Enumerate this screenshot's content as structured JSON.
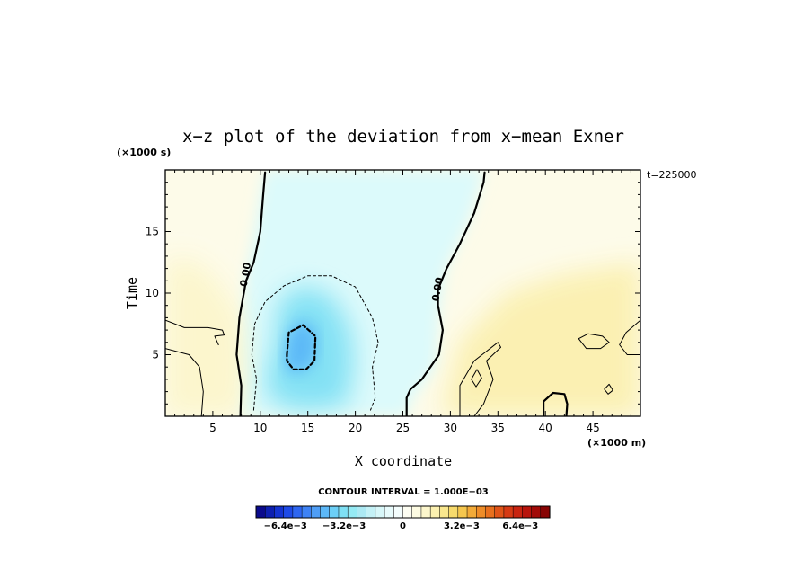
{
  "chart_data": {
    "type": "heatmap",
    "title": "x−z plot of the deviation from x−mean Exner",
    "xlabel": "X coordinate",
    "ylabel": "Time",
    "x_unit": "(×1000 m)",
    "y_unit": "(×1000 s)",
    "time_label": "t=225000",
    "xlim": [
      0,
      50
    ],
    "ylim": [
      0,
      20
    ],
    "x_ticks": [
      5,
      10,
      15,
      20,
      25,
      30,
      35,
      40,
      45
    ],
    "x_tick_labels": [
      "5",
      "10",
      "15",
      "20",
      "25",
      "30",
      "35",
      "40",
      "45"
    ],
    "y_ticks": [
      5,
      10,
      15
    ],
    "y_tick_labels": [
      "5",
      "10",
      "15"
    ],
    "contour_interval_text": "CONTOUR INTERVAL = 1.000E−03",
    "contour_labels": [
      {
        "text": "0.00",
        "x": 8.5,
        "y": 11.5
      },
      {
        "text": "0.00",
        "x": 28.7,
        "y": 10.3
      }
    ],
    "colorbar": {
      "min": -0.008,
      "max": 0.008,
      "tick_labels": [
        "−6.4e−3",
        "−3.2e−3",
        "0",
        "3.2e−3",
        "6.4e−3"
      ],
      "tick_values": [
        -0.0064,
        -0.0032,
        0,
        0.0032,
        0.0064
      ],
      "colors": [
        "#0a0a8c",
        "#0d1fb0",
        "#1433d0",
        "#1e4ae6",
        "#2e66f0",
        "#3e82f4",
        "#4f9ef6",
        "#5cb8f8",
        "#6ccff6",
        "#7fe0f4",
        "#95eaf4",
        "#ace9f3",
        "#c4f1f6",
        "#d8f7f9",
        "#e8fbfc",
        "#f4fdfd",
        "#fdfdf2",
        "#fdfbe2",
        "#fcf6cc",
        "#fbf0b0",
        "#f9e78e",
        "#f7da6c",
        "#f5c64e",
        "#f2aa38",
        "#ee8c28",
        "#e8701e",
        "#e05418",
        "#d63a14",
        "#c82410",
        "#b8140c",
        "#a20a08",
        "#880404"
      ]
    },
    "fields": [
      {
        "name": "deep-negative",
        "value": -0.0035,
        "region": [
          [
            10.5,
            3
          ],
          [
            11.5,
            6
          ],
          [
            12,
            9.5
          ],
          [
            14.5,
            10.6
          ],
          [
            17.5,
            9.8
          ],
          [
            19.5,
            7
          ],
          [
            19.8,
            4
          ],
          [
            19,
            0.8
          ],
          [
            14,
            0.5
          ],
          [
            11,
            1.3
          ]
        ]
      },
      {
        "name": "negative-core",
        "value": -0.0045,
        "region": [
          [
            12.5,
            4
          ],
          [
            12.8,
            6.5
          ],
          [
            14,
            7.8
          ],
          [
            15.8,
            7.2
          ],
          [
            16,
            5
          ],
          [
            15,
            3.8
          ],
          [
            13.5,
            3.5
          ]
        ]
      },
      {
        "name": "positive-right",
        "value": 0.0015,
        "region": [
          [
            29,
            0
          ],
          [
            31,
            6
          ],
          [
            36,
            10
          ],
          [
            42,
            11.5
          ],
          [
            50,
            12.5
          ],
          [
            50,
            0
          ]
        ]
      },
      {
        "name": "positive-left",
        "value": 0.0012,
        "region": [
          [
            0,
            0
          ],
          [
            0,
            12.7
          ],
          [
            3,
            12.7
          ],
          [
            5.5,
            11
          ],
          [
            8,
            8
          ],
          [
            8.5,
            4
          ],
          [
            8,
            0
          ]
        ]
      }
    ],
    "contours": [
      {
        "value": 0.0,
        "style": "solid-thick",
        "points": [
          [
            10.5,
            19.8
          ],
          [
            10.3,
            18
          ],
          [
            10,
            15
          ],
          [
            9.3,
            12.5
          ],
          [
            8.5,
            11
          ],
          [
            7.8,
            8
          ],
          [
            7.5,
            5
          ],
          [
            8,
            2.5
          ],
          [
            7.9,
            0
          ]
        ]
      },
      {
        "value": 0.0,
        "style": "solid-thick",
        "points": [
          [
            33.6,
            19.8
          ],
          [
            33.5,
            19
          ],
          [
            32.5,
            16.5
          ],
          [
            31,
            14
          ],
          [
            29.6,
            12
          ],
          [
            28.7,
            10.3
          ],
          [
            28.7,
            9
          ],
          [
            29.2,
            7
          ],
          [
            28.8,
            5
          ],
          [
            27,
            3
          ],
          [
            25.8,
            2.2
          ],
          [
            25.4,
            1.5
          ],
          [
            25.4,
            0
          ]
        ]
      },
      {
        "value": -0.001,
        "style": "dashed",
        "points": [
          [
            9.3,
            0.5
          ],
          [
            9.6,
            3
          ],
          [
            9.1,
            5
          ],
          [
            9.4,
            7.5
          ],
          [
            10.5,
            9.3
          ],
          [
            12.5,
            10.6
          ],
          [
            15,
            11.4
          ],
          [
            17.5,
            11.4
          ],
          [
            20,
            10.5
          ],
          [
            21.8,
            8
          ],
          [
            22.4,
            6
          ],
          [
            21.8,
            4
          ],
          [
            22.1,
            1.5
          ],
          [
            21.6,
            0.5
          ]
        ]
      },
      {
        "value": -0.004,
        "style": "dashed-thick",
        "points": [
          [
            12.8,
            5
          ],
          [
            13,
            6.8
          ],
          [
            14.5,
            7.4
          ],
          [
            15.8,
            6.5
          ],
          [
            15.7,
            4.5
          ],
          [
            14.8,
            3.8
          ],
          [
            13.5,
            3.8
          ],
          [
            12.8,
            4.5
          ],
          [
            12.8,
            5
          ]
        ]
      },
      {
        "value": 0.001,
        "style": "solid",
        "points": [
          [
            0,
            7.8
          ],
          [
            2,
            7.2
          ],
          [
            4.5,
            7.2
          ],
          [
            6,
            7
          ],
          [
            6.2,
            6.6
          ],
          [
            5.2,
            6.5
          ],
          [
            5.6,
            5.8
          ]
        ]
      },
      {
        "value": 0.001,
        "style": "solid",
        "points": [
          [
            0,
            5.5
          ],
          [
            2.5,
            5
          ],
          [
            3.6,
            4
          ],
          [
            4,
            2
          ],
          [
            3.8,
            0
          ]
        ]
      },
      {
        "value": 0.001,
        "style": "solid",
        "points": [
          [
            31,
            0
          ],
          [
            31,
            2.5
          ],
          [
            32.5,
            4.5
          ],
          [
            35,
            6
          ],
          [
            35.3,
            5.6
          ],
          [
            33.8,
            4.5
          ],
          [
            34.5,
            3
          ],
          [
            33.5,
            1
          ],
          [
            32.5,
            0
          ]
        ]
      },
      {
        "value": 0.001,
        "style": "solid",
        "points": [
          [
            32.2,
            3
          ],
          [
            32.8,
            3.8
          ],
          [
            33.3,
            3.1
          ],
          [
            32.7,
            2.4
          ],
          [
            32.2,
            3
          ]
        ]
      },
      {
        "value": 0.001,
        "style": "solid",
        "points": [
          [
            43.5,
            6.3
          ],
          [
            44.5,
            6.7
          ],
          [
            46,
            6.5
          ],
          [
            46.7,
            6
          ],
          [
            45.8,
            5.5
          ],
          [
            44.3,
            5.5
          ],
          [
            43.5,
            6.3
          ]
        ]
      },
      {
        "value": 0.001,
        "style": "solid",
        "points": [
          [
            50,
            7.8
          ],
          [
            48.5,
            6.8
          ],
          [
            47.8,
            5.8
          ],
          [
            48.6,
            5
          ],
          [
            50,
            5
          ]
        ]
      },
      {
        "value": 0.001,
        "style": "solid",
        "points": [
          [
            46.2,
            2.2
          ],
          [
            46.7,
            2.6
          ],
          [
            47.1,
            2.1
          ],
          [
            46.6,
            1.8
          ],
          [
            46.2,
            2.2
          ]
        ]
      },
      {
        "value": 0.002,
        "style": "solid-thick",
        "points": [
          [
            39.8,
            0
          ],
          [
            39.8,
            1.2
          ],
          [
            40.8,
            1.9
          ],
          [
            42,
            1.8
          ],
          [
            42.3,
            1
          ],
          [
            42.2,
            0
          ]
        ]
      }
    ]
  }
}
